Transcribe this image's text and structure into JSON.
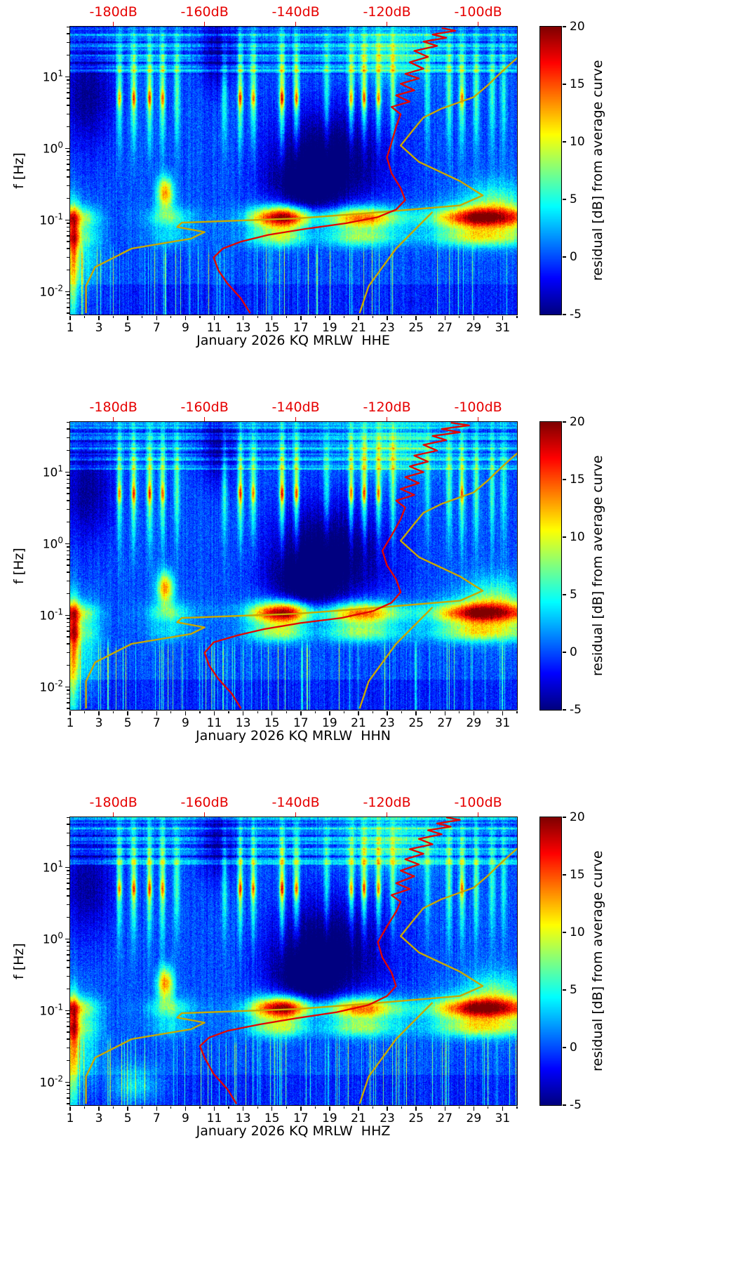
{
  "chart_data": {
    "type": "heatmap",
    "x_axis": {
      "min": 1,
      "max": 32,
      "major_ticks": [
        1,
        3,
        5,
        7,
        9,
        11,
        13,
        15,
        17,
        19,
        21,
        23,
        25,
        27,
        29,
        31
      ]
    },
    "y_axis": {
      "label": "f [Hz]",
      "log_min": -2.32,
      "log_max": 1.7,
      "tick_exponents": [
        -2,
        -1,
        0,
        1
      ]
    },
    "top_axis": {
      "labels": [
        "-180dB",
        "-160dB",
        "-140dB",
        "-120dB",
        "-100dB"
      ],
      "db_values": [
        -180,
        -160,
        -140,
        -120,
        -100
      ],
      "ref_db": -180,
      "ref_day": 4.0,
      "day_per_db": 0.3163
    },
    "colorbar": {
      "label": "residual [dB] from average curve",
      "min": -5,
      "max": 20,
      "ticks": [
        20,
        15,
        10,
        5,
        0,
        -5
      ]
    },
    "colors": {
      "top_axis_label": "#e60000",
      "curve_red": "#e10600",
      "curve_yellow": "#c8a800",
      "axis": "#000000",
      "background": "#ffffff"
    },
    "curve_yellow": [
      [
        -186,
        0.005
      ],
      [
        -186,
        0.012
      ],
      [
        -184,
        0.022
      ],
      [
        -176,
        0.04
      ],
      [
        -163,
        0.055
      ],
      [
        -160,
        0.068
      ],
      [
        -166,
        0.08
      ],
      [
        -165,
        0.092
      ],
      [
        -140,
        0.105
      ],
      [
        -124,
        0.125
      ],
      [
        -104,
        0.16
      ],
      [
        -99,
        0.22
      ],
      [
        -104,
        0.35
      ],
      [
        -113,
        0.65
      ],
      [
        -117,
        1.1
      ],
      [
        -114,
        1.9
      ],
      [
        -112,
        2.7
      ],
      [
        -108,
        3.6
      ],
      [
        -101,
        5.2
      ],
      [
        -98,
        7.5
      ],
      [
        -96,
        10
      ],
      [
        -93,
        15
      ],
      [
        -90,
        22
      ],
      [
        -87,
        32
      ],
      [
        -85,
        46
      ]
    ],
    "curve_yellow_branch": [
      [
        -110,
        0.13
      ],
      [
        -118,
        0.04
      ],
      [
        -124,
        0.012
      ],
      [
        -126,
        0.005
      ]
    ],
    "panels": [
      {
        "channel": "HHE",
        "xlabel": "January 2026 KQ MRLW  HHE",
        "seed": 101,
        "extra_blobs": [],
        "curve_red": [
          [
            -150,
            0.005
          ],
          [
            -152,
            0.008
          ],
          [
            -155,
            0.013
          ],
          [
            -157,
            0.02
          ],
          [
            -158,
            0.03
          ],
          [
            -156,
            0.04
          ],
          [
            -152,
            0.05
          ],
          [
            -146,
            0.062
          ],
          [
            -138,
            0.075
          ],
          [
            -129,
            0.09
          ],
          [
            -122,
            0.11
          ],
          [
            -118,
            0.14
          ],
          [
            -116,
            0.19
          ],
          [
            -117,
            0.28
          ],
          [
            -119,
            0.45
          ],
          [
            -120,
            0.75
          ],
          [
            -119,
            1.2
          ],
          [
            -118,
            2.0
          ],
          [
            -117,
            3.0
          ],
          [
            -119,
            3.8
          ],
          [
            -115,
            4.5
          ],
          [
            -118,
            5.5
          ],
          [
            -114,
            6.5
          ],
          [
            -117,
            8
          ],
          [
            -113,
            9.5
          ],
          [
            -116,
            11
          ],
          [
            -112,
            13
          ],
          [
            -115,
            16
          ],
          [
            -111,
            19
          ],
          [
            -114,
            23
          ],
          [
            -109,
            27
          ],
          [
            -112,
            31
          ],
          [
            -107,
            35
          ],
          [
            -110,
            39
          ],
          [
            -105,
            44
          ],
          [
            -108,
            48
          ]
        ]
      },
      {
        "channel": "HHN",
        "xlabel": "January 2026 KQ MRLW  HHN",
        "seed": 202,
        "extra_blobs": [],
        "curve_red": [
          [
            -152,
            0.005
          ],
          [
            -154,
            0.008
          ],
          [
            -157,
            0.013
          ],
          [
            -159,
            0.02
          ],
          [
            -160,
            0.03
          ],
          [
            -158,
            0.042
          ],
          [
            -153,
            0.052
          ],
          [
            -147,
            0.064
          ],
          [
            -139,
            0.078
          ],
          [
            -130,
            0.092
          ],
          [
            -123,
            0.115
          ],
          [
            -119,
            0.15
          ],
          [
            -117,
            0.21
          ],
          [
            -118,
            0.32
          ],
          [
            -120,
            0.5
          ],
          [
            -121,
            0.8
          ],
          [
            -119,
            1.3
          ],
          [
            -117,
            2.2
          ],
          [
            -116,
            3.2
          ],
          [
            -118,
            4.0
          ],
          [
            -114,
            4.8
          ],
          [
            -117,
            5.8
          ],
          [
            -113,
            7
          ],
          [
            -116,
            8.5
          ],
          [
            -112,
            10
          ],
          [
            -115,
            12
          ],
          [
            -111,
            14
          ],
          [
            -114,
            17
          ],
          [
            -109,
            20
          ],
          [
            -112,
            24
          ],
          [
            -107,
            28
          ],
          [
            -110,
            32
          ],
          [
            -104,
            36
          ],
          [
            -108,
            40
          ],
          [
            -102,
            45
          ],
          [
            -106,
            49
          ]
        ]
      },
      {
        "channel": "HHZ",
        "xlabel": "January 2026 KQ MRLW  HHZ",
        "seed": 303,
        "extra_blobs": [
          {
            "d": 5.5,
            "lf": -2.05,
            "amp": 5,
            "sd": 1.2,
            "slf": 0.18
          }
        ],
        "curve_red": [
          [
            -153,
            0.005
          ],
          [
            -155,
            0.008
          ],
          [
            -158,
            0.013
          ],
          [
            -160,
            0.022
          ],
          [
            -161,
            0.032
          ],
          [
            -159,
            0.042
          ],
          [
            -155,
            0.052
          ],
          [
            -148,
            0.064
          ],
          [
            -140,
            0.078
          ],
          [
            -131,
            0.095
          ],
          [
            -124,
            0.12
          ],
          [
            -120,
            0.16
          ],
          [
            -118,
            0.22
          ],
          [
            -119,
            0.34
          ],
          [
            -121,
            0.55
          ],
          [
            -122,
            0.9
          ],
          [
            -120,
            1.5
          ],
          [
            -118,
            2.4
          ],
          [
            -117,
            3.3
          ],
          [
            -119,
            4.1
          ],
          [
            -115,
            5
          ],
          [
            -118,
            6
          ],
          [
            -114,
            7.5
          ],
          [
            -117,
            9
          ],
          [
            -113,
            11
          ],
          [
            -116,
            13
          ],
          [
            -112,
            15.5
          ],
          [
            -115,
            18
          ],
          [
            -110,
            21
          ],
          [
            -113,
            25
          ],
          [
            -108,
            29
          ],
          [
            -111,
            33
          ],
          [
            -106,
            37
          ],
          [
            -109,
            41
          ],
          [
            -104,
            46
          ],
          [
            -107,
            50
          ]
        ]
      }
    ],
    "features": {
      "stripes": {
        "days": [
          4.4,
          5.4,
          6.5,
          7.4,
          8.4,
          11.7,
          12.8,
          13.7,
          15.7,
          16.7,
          18.8,
          20.5,
          21.4,
          22.4,
          23.4,
          25.8,
          27.3,
          28.2,
          29.2,
          30.3,
          31.1
        ],
        "amps": [
          8,
          9,
          9,
          8,
          7,
          6,
          9,
          8,
          10,
          9,
          6,
          8,
          9,
          8,
          7,
          5,
          7,
          8,
          7,
          6,
          5
        ],
        "sigma_day": 0.14,
        "lf_center": 0.8,
        "lf_sigma": 0.55,
        "core_lf": 0.7,
        "core_sigma": 0.08
      },
      "microseism": {
        "lf_center": -0.97,
        "lf_sigma": 0.1,
        "lf_center2": -1.25,
        "lf_sigma2": 0.09,
        "profile": [
          [
            1,
            9
          ],
          [
            2,
            6
          ],
          [
            3,
            2
          ],
          [
            4,
            0
          ],
          [
            6,
            1
          ],
          [
            7,
            4
          ],
          [
            8,
            6
          ],
          [
            9,
            3
          ],
          [
            10,
            1
          ],
          [
            12,
            1
          ],
          [
            13,
            3
          ],
          [
            14,
            9
          ],
          [
            15,
            13
          ],
          [
            16,
            14
          ],
          [
            17,
            9
          ],
          [
            18,
            5
          ],
          [
            19,
            7
          ],
          [
            20,
            11
          ],
          [
            21,
            13
          ],
          [
            22,
            12
          ],
          [
            23,
            8
          ],
          [
            24,
            5
          ],
          [
            25,
            4
          ],
          [
            26,
            5
          ],
          [
            27,
            9
          ],
          [
            28,
            12
          ],
          [
            29,
            15
          ],
          [
            30,
            14
          ],
          [
            31,
            12
          ],
          [
            32,
            10
          ]
        ]
      },
      "blobs": [
        {
          "d": 7.6,
          "lf": -0.62,
          "amp": 13,
          "sd": 0.4,
          "slf": 0.16
        },
        {
          "d": 19.0,
          "lf": -0.18,
          "amp": -7,
          "sd": 2.8,
          "slf": 0.5
        },
        {
          "d": 17.2,
          "lf": -0.6,
          "amp": -5,
          "sd": 1.6,
          "slf": 0.3
        },
        {
          "d": 2.2,
          "lf": 0.75,
          "amp": -4.5,
          "sd": 1.3,
          "slf": 0.5
        },
        {
          "d": 11.3,
          "lf": 1.35,
          "amp": -5,
          "sd": 0.9,
          "slf": 0.35
        },
        {
          "d": 23.5,
          "lf": 1.35,
          "amp": 4.5,
          "sd": 2.2,
          "slf": 0.28
        },
        {
          "d": 1.15,
          "lf": -1.7,
          "amp": 9,
          "sd": 0.3,
          "slf": 0.55
        },
        {
          "d": 1.3,
          "lf": -1.2,
          "amp": 6,
          "sd": 0.25,
          "slf": 0.3
        },
        {
          "d": 2.0,
          "lf": -1.55,
          "amp": 4,
          "sd": 0.8,
          "slf": 0.4
        },
        {
          "d": 30.5,
          "lf": -0.8,
          "amp": 6,
          "sd": 1.5,
          "slf": 0.25
        },
        {
          "d": 16.2,
          "lf": -0.95,
          "amp": 6,
          "sd": 1.2,
          "slf": 0.12
        }
      ],
      "low_speckle": {
        "lf_start": -1.3,
        "prob": 0.1
      },
      "high_band": {
        "lf_min": 1.04,
        "base": 1.2,
        "boundary_lf": 1.08
      }
    }
  }
}
